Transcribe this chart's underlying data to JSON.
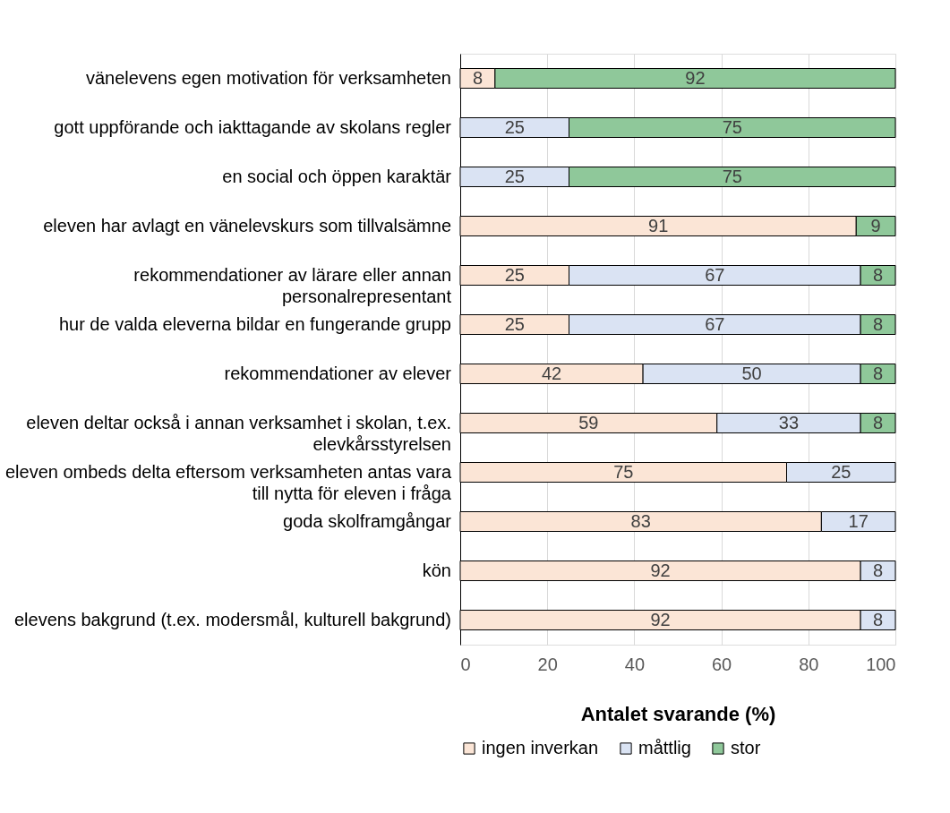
{
  "chart_data": {
    "type": "bar",
    "orientation": "horizontal",
    "stacked": true,
    "data_labels": true,
    "xlabel": "Antalet svarande (%)",
    "categories": [
      "vänelevens egen motivation för verksamheten",
      "gott uppförande och iakttagande av skolans regler",
      "en social och öppen karaktär",
      "eleven har avlagt en vänelevskurs som tillvalsämne",
      "rekommendationer av lärare eller annan\npersonalrepresentant",
      "hur de valda eleverna bildar en fungerande grupp",
      "rekommendationer av elever",
      "eleven deltar också i annan verksamhet i skolan, t.ex.\nelevkårsstyrelsen",
      "eleven ombeds delta eftersom verksamheten antas vara\ntill nytta för eleven i fråga",
      "goda skolframgångar",
      "kön",
      "elevens bakgrund (t.ex. modersmål, kulturell bakgrund)"
    ],
    "series": [
      {
        "name": "ingen inverkan",
        "color": "#fbe5d6",
        "values": [
          8,
          null,
          null,
          91,
          25,
          25,
          42,
          59,
          75,
          83,
          92,
          92
        ]
      },
      {
        "name": "måttlig",
        "color": "#dae3f3",
        "values": [
          null,
          25,
          25,
          null,
          67,
          67,
          50,
          33,
          25,
          17,
          8,
          8
        ]
      },
      {
        "name": "stor",
        "color": "#8fc89a",
        "values": [
          92,
          75,
          75,
          9,
          8,
          8,
          8,
          8,
          null,
          null,
          null,
          null
        ]
      }
    ],
    "xlim": [
      0,
      100
    ],
    "xticks": [
      0,
      20,
      40,
      60,
      80,
      100
    ],
    "grid": "x",
    "legend": "bottom"
  }
}
